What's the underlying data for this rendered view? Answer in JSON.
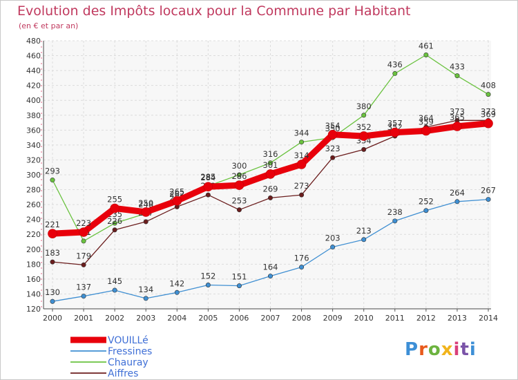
{
  "title": "Evolution des Impôts locaux pour la Commune par Habitant",
  "subtitle": "(en € et par an)",
  "brand": {
    "text": "Proxiti"
  },
  "chart_data": {
    "type": "line",
    "title": "Evolution des Impôts locaux pour la Commune par Habitant",
    "subtitle": "(en € et par an)",
    "xlabel": "",
    "ylabel": "",
    "x": [
      "2000",
      "2001",
      "2002",
      "2003",
      "2004",
      "2005",
      "2006",
      "2007",
      "2008",
      "2009",
      "2010",
      "2011",
      "2012",
      "2013",
      "2014"
    ],
    "ylim": [
      120,
      480
    ],
    "yticks": [
      120,
      140,
      160,
      180,
      200,
      220,
      240,
      260,
      280,
      300,
      320,
      340,
      360,
      380,
      400,
      420,
      440,
      460,
      480
    ],
    "grid": true,
    "legend_position": "bottom-left",
    "series": [
      {
        "name": "VOUILLé",
        "color": "#e8000b",
        "values": [
          221,
          223,
          255,
          250,
          265,
          284,
          286,
          301,
          314,
          354,
          352,
          357,
          359,
          365,
          369
        ]
      },
      {
        "name": "Fressines",
        "color": "#3f8fd2",
        "values": [
          130,
          137,
          145,
          134,
          142,
          152,
          151,
          164,
          176,
          203,
          213,
          238,
          252,
          264,
          267
        ]
      },
      {
        "name": "Chauray",
        "color": "#6ac23f",
        "values": [
          293,
          211,
          235,
          248,
          262,
          285,
          300,
          316,
          344,
          350,
          380,
          436,
          461,
          433,
          408
        ]
      },
      {
        "name": "Aiffres",
        "color": "#6b1d1d",
        "values": [
          183,
          179,
          226,
          237,
          257,
          273,
          253,
          269,
          273,
          323,
          334,
          352,
          364,
          373,
          373
        ]
      }
    ]
  }
}
